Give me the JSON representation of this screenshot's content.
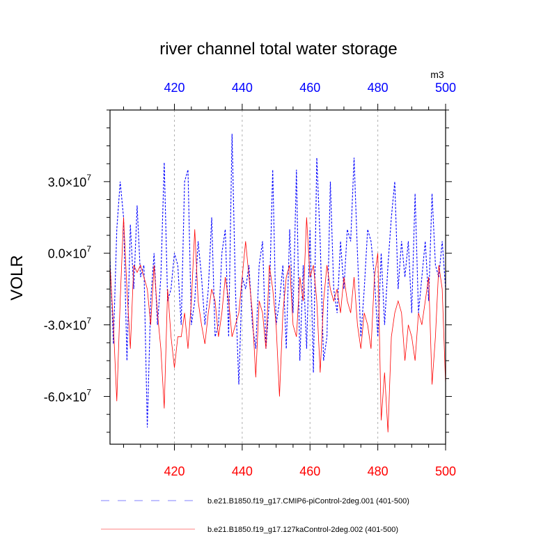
{
  "chart_data": {
    "type": "line",
    "title": "river channel total water storage",
    "ylabel": "VOLR",
    "units": "m3",
    "grid": "vertical dashed at major x ticks",
    "xlim": [
      401,
      500
    ],
    "ylim": [
      -80000000,
      60000000
    ],
    "x_ticks": [
      420,
      440,
      460,
      480,
      500
    ],
    "x_tick_labels": [
      "420",
      "440",
      "460",
      "480",
      "500"
    ],
    "y_ticks": [
      30000000,
      0,
      -30000000,
      -60000000
    ],
    "y_tick_labels": [
      {
        "mantissa": "3.0",
        "times": "×",
        "base": "10",
        "exp": "7"
      },
      {
        "mantissa": "0.0",
        "times": "×",
        "base": "10",
        "exp": "7"
      },
      {
        "mantissa": "-3.0",
        "times": "×",
        "base": "10",
        "exp": "7"
      },
      {
        "mantissa": "-6.0",
        "times": "×",
        "base": "10",
        "exp": "7"
      }
    ],
    "top_axis_color": "#0000ff",
    "bottom_axis_color": "#ff0000",
    "series": [
      {
        "name": "b.e21.B1850.f19_g17.CMIP6-piControl-2deg.001 (401-500)",
        "color": "#0000ff",
        "dash": "dashed",
        "x_start": 401,
        "values": [
          -2,
          -38,
          10,
          30,
          15,
          -45,
          12,
          -15,
          20,
          -10,
          -5,
          -73,
          -20,
          0,
          -30,
          -10,
          38,
          -20,
          -15,
          0,
          -5,
          -30,
          30,
          35,
          -30,
          -20,
          5,
          -10,
          -30,
          -15,
          15,
          -35,
          -30,
          0,
          10,
          -35,
          50,
          -15,
          -55,
          -10,
          -15,
          -5,
          -30,
          -40,
          -5,
          5,
          -40,
          -20,
          35,
          -30,
          -20,
          -5,
          -40,
          10,
          -25,
          35,
          -45,
          -5,
          -40,
          10,
          -50,
          40,
          5,
          -45,
          -35,
          30,
          -15,
          -25,
          5,
          -15,
          10,
          5,
          40,
          0,
          -35,
          -15,
          10,
          5,
          -10,
          -35,
          0,
          -30,
          -5,
          15,
          30,
          -15,
          5,
          -10,
          5,
          -25,
          25,
          -25,
          -10,
          5,
          -20,
          25,
          -5,
          -10,
          5,
          -15
        ]
      },
      {
        "name": "b.e21.B1850.f19_g17.127kaControl-2deg.002 (401-500)",
        "color": "#ff0000",
        "dash": "solid",
        "x_start": 401,
        "values": [
          -5,
          -30,
          -62,
          -20,
          15,
          -15,
          -40,
          -5,
          -8,
          -5,
          -10,
          -15,
          -30,
          -5,
          -25,
          -40,
          -65,
          -15,
          -35,
          -48,
          -35,
          -35,
          -25,
          -40,
          -20,
          10,
          -20,
          -30,
          -38,
          -25,
          -15,
          -20,
          -35,
          -25,
          -10,
          -20,
          -35,
          -30,
          -25,
          -10,
          5,
          -10,
          -25,
          -52,
          -20,
          -25,
          -40,
          -5,
          -15,
          -30,
          -60,
          -25,
          -10,
          -5,
          -30,
          -35,
          -10,
          -20,
          15,
          -10,
          -5,
          -20,
          -50,
          -20,
          -5,
          -15,
          -20,
          -15,
          -25,
          -10,
          -20,
          -25,
          -10,
          -30,
          -40,
          -25,
          -30,
          -40,
          -10,
          0,
          -70,
          -50,
          -75,
          -35,
          -25,
          -20,
          -25,
          -45,
          -30,
          -35,
          -45,
          -25,
          -30,
          -20,
          -10,
          -55,
          -35,
          -5,
          -15,
          -55
        ]
      }
    ]
  },
  "legend": {
    "entries": [
      {
        "label": "b.e21.B1850.f19_g17.CMIP6-piControl-2deg.001 (401-500)",
        "color": "#8080ff"
      },
      {
        "label": "b.e21.B1850.f19_g17.127kaControl-2deg.002 (401-500)",
        "color": "#ff8080"
      }
    ]
  }
}
